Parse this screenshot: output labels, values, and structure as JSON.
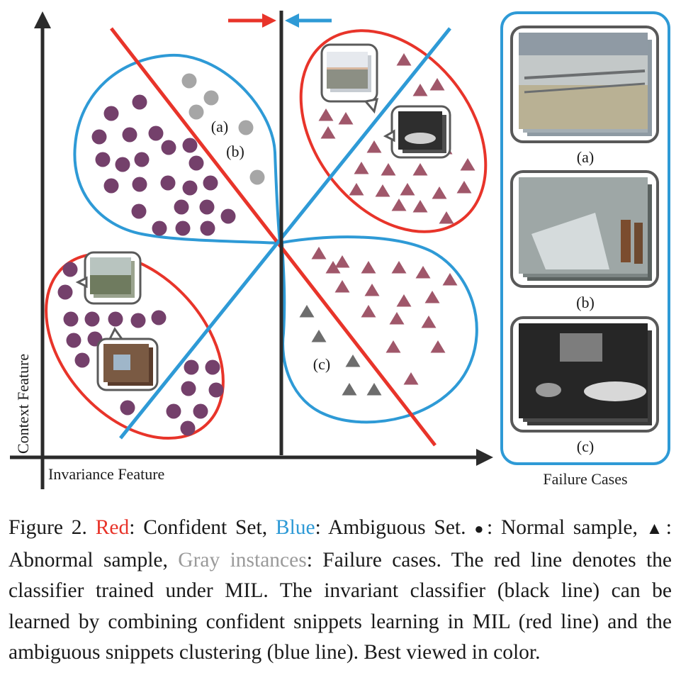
{
  "diagram": {
    "x_axis_label": "Invariance Feature",
    "y_axis_label": "Context Feature",
    "annotations": {
      "a": "(a)",
      "b": "(b)",
      "c": "(c)"
    },
    "colors": {
      "red": "#e8342a",
      "blue": "#2e9ad6",
      "normal": "#74406b",
      "abnormal": "#a0576a",
      "failure_circle": "#a6a6a6",
      "failure_triangle": "#6d6d6d",
      "axis": "#2b2b2b"
    },
    "failure_panel": {
      "title": "Failure Cases",
      "items": [
        {
          "label": "(a)",
          "icon": "industrial-yard-thumbnail"
        },
        {
          "label": "(b)",
          "icon": "workers-room-thumbnail"
        },
        {
          "label": "(c)",
          "icon": "night-parking-thumbnail"
        }
      ]
    }
  },
  "caption": {
    "prefix": "Figure 2.",
    "red_word": "Red",
    "after_red": ": Confident Set,",
    "blue_word": "Blue",
    "after_blue": ": Ambiguous Set.",
    "circle_glyph": "●",
    "after_circle": ": Normal sample,",
    "triangle_glyph": "▲",
    "after_triangle": ": Abnormal sample,",
    "gray_words": "Gray instances",
    "after_gray": ": Failure cases.",
    "rest": "The red line denotes the classifier trained under MIL. The invariant classifier (black line) can be learned by combining confident snippets learning in MIL (red line) and the ambiguous snippets clustering (blue line). Best viewed in color."
  }
}
